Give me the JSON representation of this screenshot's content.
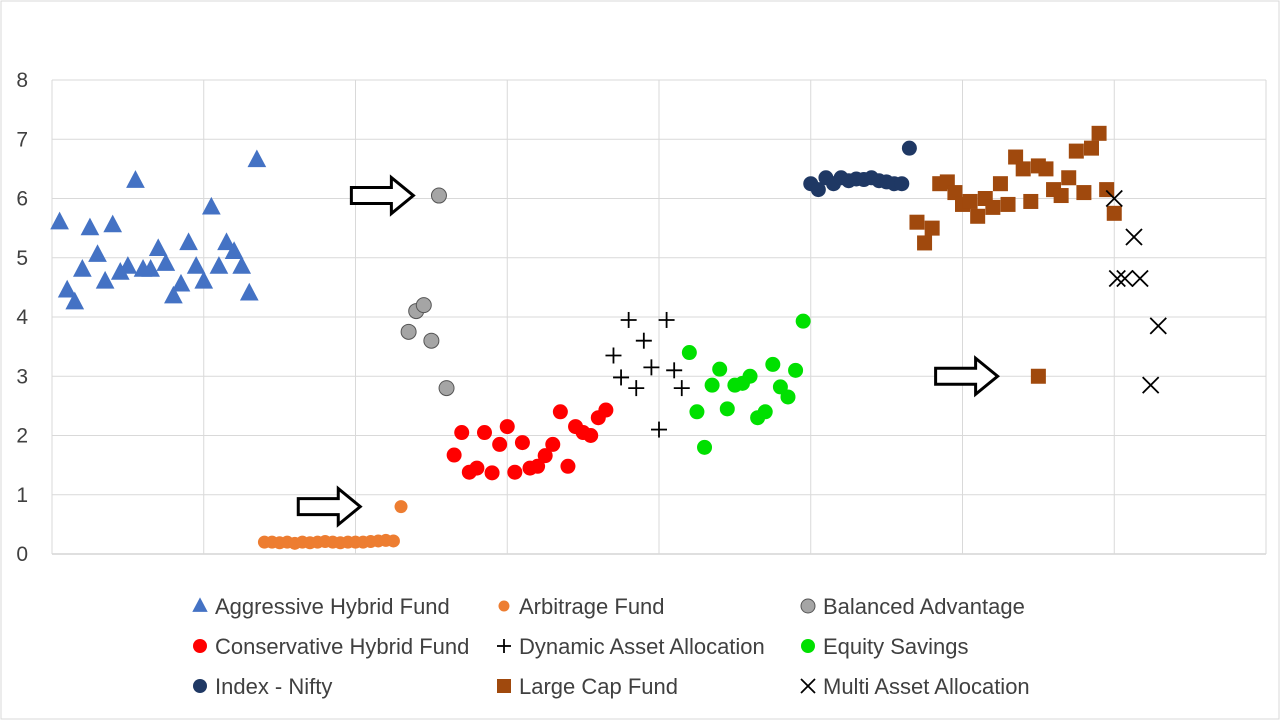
{
  "chart_data": {
    "type": "scatter",
    "title": "",
    "xlabel": "",
    "ylabel": "",
    "ylim": [
      0,
      8
    ],
    "yticks": [
      "0",
      "1",
      "2",
      "3",
      "4",
      "5",
      "6",
      "7",
      "8"
    ],
    "xlim": [
      0,
      8
    ],
    "grid": true,
    "legend_position": "bottom",
    "series": [
      {
        "name": "Aggressive Hybrid Fund",
        "marker": "triangle",
        "color": "#4472C4",
        "points": [
          [
            0.05,
            5.6
          ],
          [
            0.1,
            4.45
          ],
          [
            0.15,
            4.25
          ],
          [
            0.2,
            4.8
          ],
          [
            0.25,
            5.5
          ],
          [
            0.3,
            5.05
          ],
          [
            0.35,
            4.6
          ],
          [
            0.4,
            5.55
          ],
          [
            0.45,
            4.75
          ],
          [
            0.5,
            4.85
          ],
          [
            0.55,
            6.3
          ],
          [
            0.6,
            4.8
          ],
          [
            0.65,
            4.8
          ],
          [
            0.7,
            5.15
          ],
          [
            0.75,
            4.9
          ],
          [
            0.8,
            4.35
          ],
          [
            0.85,
            4.55
          ],
          [
            0.9,
            5.25
          ],
          [
            0.95,
            4.85
          ],
          [
            1.0,
            4.6
          ],
          [
            1.05,
            5.85
          ],
          [
            1.1,
            4.85
          ],
          [
            1.15,
            5.25
          ],
          [
            1.2,
            5.1
          ],
          [
            1.25,
            4.85
          ],
          [
            1.3,
            4.4
          ],
          [
            1.35,
            6.65
          ]
        ]
      },
      {
        "name": "Arbitrage Fund",
        "marker": "circle",
        "color": "#ED7D31",
        "points": [
          [
            1.4,
            0.2
          ],
          [
            1.45,
            0.2
          ],
          [
            1.5,
            0.19
          ],
          [
            1.55,
            0.2
          ],
          [
            1.6,
            0.18
          ],
          [
            1.65,
            0.2
          ],
          [
            1.7,
            0.19
          ],
          [
            1.75,
            0.2
          ],
          [
            1.8,
            0.21
          ],
          [
            1.85,
            0.2
          ],
          [
            1.9,
            0.19
          ],
          [
            1.95,
            0.2
          ],
          [
            2.0,
            0.2
          ],
          [
            2.05,
            0.2
          ],
          [
            2.1,
            0.21
          ],
          [
            2.15,
            0.22
          ],
          [
            2.2,
            0.23
          ],
          [
            2.25,
            0.22
          ],
          [
            2.3,
            0.8
          ]
        ]
      },
      {
        "name": "Balanced Advantage",
        "marker": "circle",
        "color": "#A5A5A5",
        "points": [
          [
            2.35,
            3.75
          ],
          [
            2.4,
            4.1
          ],
          [
            2.45,
            4.2
          ],
          [
            2.5,
            3.6
          ],
          [
            2.55,
            6.05
          ],
          [
            2.6,
            2.8
          ]
        ]
      },
      {
        "name": "Conservative Hybrid Fund",
        "marker": "circle",
        "color": "#FF0000",
        "points": [
          [
            2.65,
            1.67
          ],
          [
            2.7,
            2.05
          ],
          [
            2.75,
            1.38
          ],
          [
            2.8,
            1.45
          ],
          [
            2.85,
            2.05
          ],
          [
            2.9,
            1.37
          ],
          [
            2.95,
            1.85
          ],
          [
            3.0,
            2.15
          ],
          [
            3.05,
            1.38
          ],
          [
            3.1,
            1.88
          ],
          [
            3.15,
            1.45
          ],
          [
            3.2,
            1.48
          ],
          [
            3.25,
            1.66
          ],
          [
            3.3,
            1.85
          ],
          [
            3.35,
            2.4
          ],
          [
            3.4,
            1.48
          ],
          [
            3.45,
            2.15
          ],
          [
            3.5,
            2.05
          ],
          [
            3.55,
            2.0
          ],
          [
            3.6,
            2.3
          ],
          [
            3.65,
            2.43
          ]
        ]
      },
      {
        "name": "Dynamic Asset Allocation",
        "marker": "plus",
        "color": "#000000",
        "points": [
          [
            3.7,
            3.35
          ],
          [
            3.75,
            2.98
          ],
          [
            3.8,
            3.95
          ],
          [
            3.85,
            2.8
          ],
          [
            3.9,
            3.6
          ],
          [
            3.95,
            3.15
          ],
          [
            4.0,
            2.1
          ],
          [
            4.05,
            3.95
          ],
          [
            4.1,
            3.1
          ],
          [
            4.15,
            2.8
          ]
        ]
      },
      {
        "name": "Equity Savings",
        "marker": "circle",
        "color": "#00E000",
        "points": [
          [
            4.2,
            3.4
          ],
          [
            4.25,
            2.4
          ],
          [
            4.3,
            1.8
          ],
          [
            4.35,
            2.85
          ],
          [
            4.4,
            3.12
          ],
          [
            4.45,
            2.45
          ],
          [
            4.5,
            2.85
          ],
          [
            4.55,
            2.88
          ],
          [
            4.6,
            3.0
          ],
          [
            4.65,
            2.3
          ],
          [
            4.7,
            2.4
          ],
          [
            4.75,
            3.2
          ],
          [
            4.8,
            2.82
          ],
          [
            4.85,
            2.65
          ],
          [
            4.9,
            3.1
          ],
          [
            4.95,
            3.93
          ]
        ]
      },
      {
        "name": "Index - Nifty",
        "marker": "circle",
        "color": "#1F3864",
        "points": [
          [
            5.0,
            6.25
          ],
          [
            5.05,
            6.15
          ],
          [
            5.1,
            6.35
          ],
          [
            5.15,
            6.25
          ],
          [
            5.2,
            6.35
          ],
          [
            5.25,
            6.3
          ],
          [
            5.3,
            6.33
          ],
          [
            5.35,
            6.32
          ],
          [
            5.4,
            6.35
          ],
          [
            5.45,
            6.3
          ],
          [
            5.5,
            6.28
          ],
          [
            5.55,
            6.25
          ],
          [
            5.6,
            6.25
          ],
          [
            5.65,
            6.85
          ]
        ]
      },
      {
        "name": "Large Cap Fund",
        "marker": "square",
        "color": "#A0490D",
        "points": [
          [
            5.7,
            5.6
          ],
          [
            5.75,
            5.25
          ],
          [
            5.8,
            5.5
          ],
          [
            5.85,
            6.25
          ],
          [
            5.9,
            6.28
          ],
          [
            5.95,
            6.1
          ],
          [
            6.0,
            5.9
          ],
          [
            6.05,
            5.95
          ],
          [
            6.1,
            5.7
          ],
          [
            6.15,
            6.0
          ],
          [
            6.2,
            5.85
          ],
          [
            6.25,
            6.25
          ],
          [
            6.3,
            5.9
          ],
          [
            6.35,
            6.7
          ],
          [
            6.4,
            6.5
          ],
          [
            6.45,
            5.95
          ],
          [
            6.5,
            6.55
          ],
          [
            6.55,
            6.5
          ],
          [
            6.6,
            6.15
          ],
          [
            6.65,
            6.05
          ],
          [
            6.7,
            6.35
          ],
          [
            6.75,
            6.8
          ],
          [
            6.8,
            6.1
          ],
          [
            6.85,
            6.85
          ],
          [
            6.9,
            7.1
          ],
          [
            6.95,
            6.15
          ],
          [
            7.0,
            5.75
          ],
          [
            6.5,
            3.0
          ]
        ]
      },
      {
        "name": "Multi Asset Allocation",
        "marker": "x",
        "color": "#000000",
        "points": [
          [
            7.0,
            6.0
          ],
          [
            7.02,
            4.65
          ],
          [
            7.07,
            4.65
          ],
          [
            7.13,
            5.35
          ],
          [
            7.17,
            4.65
          ],
          [
            7.24,
            2.85
          ],
          [
            7.29,
            3.85
          ]
        ]
      }
    ],
    "annotations": [
      {
        "type": "arrow",
        "x": 2.5,
        "y": 6.05
      },
      {
        "type": "arrow",
        "x": 2.15,
        "y": 0.8
      },
      {
        "type": "arrow",
        "x": 6.35,
        "y": 3.0
      }
    ]
  }
}
